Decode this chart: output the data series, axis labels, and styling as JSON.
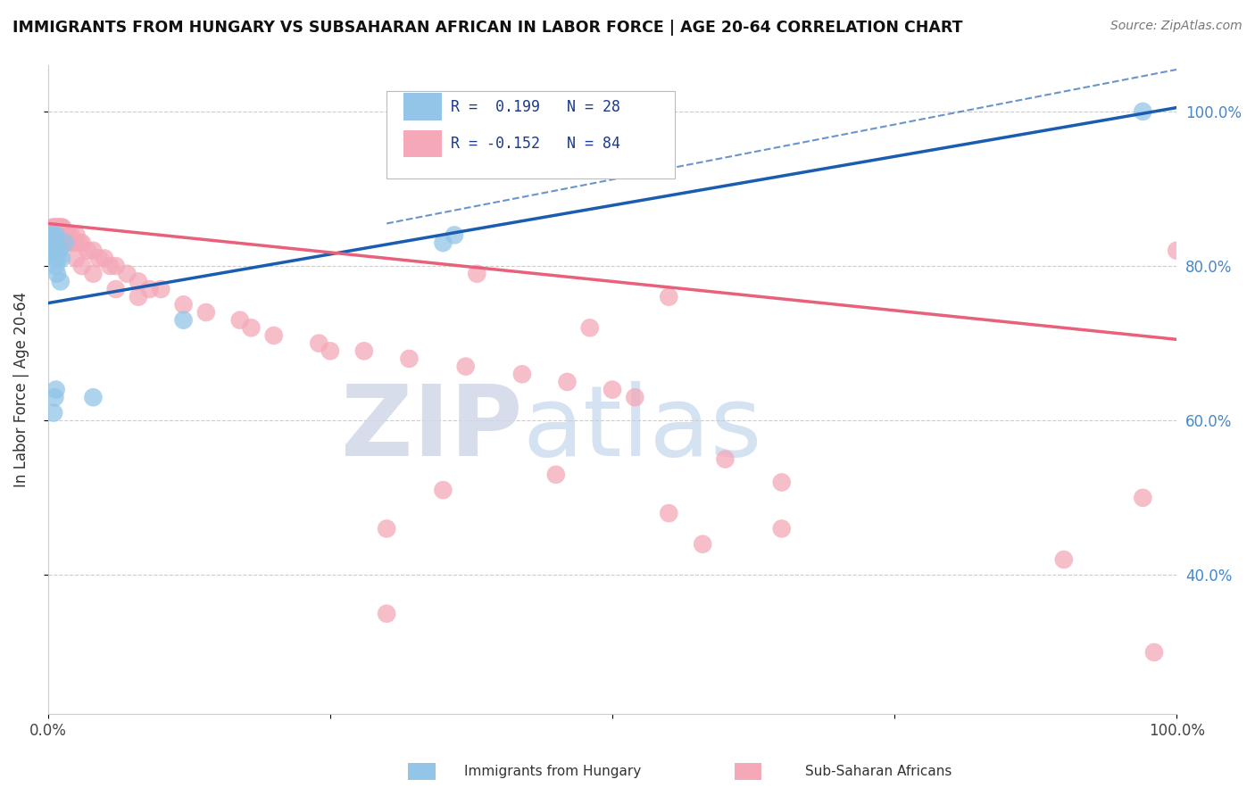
{
  "title": "IMMIGRANTS FROM HUNGARY VS SUBSAHARAN AFRICAN IN LABOR FORCE | AGE 20-64 CORRELATION CHART",
  "source_text": "Source: ZipAtlas.com",
  "ylabel": "In Labor Force | Age 20-64",
  "xlim": [
    0.0,
    1.0
  ],
  "ylim": [
    0.22,
    1.06
  ],
  "right_yticklabels": [
    "40.0%",
    "60.0%",
    "80.0%",
    "100.0%"
  ],
  "right_ytick_vals": [
    0.4,
    0.6,
    0.8,
    1.0
  ],
  "legend_r1": "R =  0.199   N = 28",
  "legend_r2": "R = -0.152   N = 84",
  "watermark_zip": "ZIP",
  "watermark_atlas": "atlas",
  "blue_color": "#92C5E8",
  "pink_color": "#F4A8B8",
  "blue_line_color": "#1A5CB0",
  "pink_line_color": "#E8607A",
  "grid_color": "#CCCCCC",
  "background_color": "#FFFFFF",
  "blue_line_x0": 0.0,
  "blue_line_y0": 0.752,
  "blue_line_x1": 1.0,
  "blue_line_y1": 1.005,
  "pink_line_x0": 0.0,
  "pink_line_y0": 0.855,
  "pink_line_x1": 1.0,
  "pink_line_y1": 0.705,
  "dash_line_x0": 0.3,
  "dash_line_y0": 0.855,
  "dash_line_x1": 1.02,
  "dash_line_y1": 1.06,
  "blue_x": [
    0.002,
    0.003,
    0.003,
    0.004,
    0.004,
    0.004,
    0.005,
    0.005,
    0.005,
    0.006,
    0.006,
    0.007,
    0.007,
    0.008,
    0.008,
    0.009,
    0.01,
    0.011,
    0.012,
    0.015,
    0.005,
    0.006,
    0.007,
    0.04,
    0.12,
    0.35,
    0.36,
    0.97
  ],
  "blue_y": [
    0.82,
    0.83,
    0.84,
    0.84,
    0.83,
    0.82,
    0.83,
    0.82,
    0.815,
    0.81,
    0.83,
    0.8,
    0.84,
    0.82,
    0.79,
    0.81,
    0.82,
    0.78,
    0.81,
    0.83,
    0.61,
    0.63,
    0.64,
    0.63,
    0.73,
    0.83,
    0.84,
    1.0
  ],
  "pink_x": [
    0.003,
    0.004,
    0.004,
    0.005,
    0.005,
    0.006,
    0.006,
    0.007,
    0.007,
    0.008,
    0.008,
    0.009,
    0.009,
    0.01,
    0.01,
    0.011,
    0.011,
    0.012,
    0.012,
    0.013,
    0.013,
    0.014,
    0.015,
    0.015,
    0.016,
    0.017,
    0.018,
    0.019,
    0.02,
    0.022,
    0.025,
    0.028,
    0.03,
    0.035,
    0.04,
    0.045,
    0.05,
    0.055,
    0.06,
    0.07,
    0.08,
    0.09,
    0.1,
    0.12,
    0.14,
    0.17,
    0.2,
    0.24,
    0.28,
    0.32,
    0.37,
    0.38,
    0.42,
    0.46,
    0.5,
    0.48,
    0.52,
    0.6,
    0.65,
    0.9,
    0.97,
    0.005,
    0.006,
    0.007,
    0.008,
    0.009,
    0.01,
    0.025,
    0.03,
    0.04,
    0.06,
    0.08,
    0.18,
    0.25,
    0.3,
    0.35,
    0.55,
    0.55,
    0.65,
    0.3,
    0.45,
    0.58,
    0.98,
    1.0
  ],
  "pink_y": [
    0.84,
    0.85,
    0.84,
    0.85,
    0.84,
    0.85,
    0.84,
    0.85,
    0.84,
    0.85,
    0.84,
    0.85,
    0.84,
    0.85,
    0.84,
    0.85,
    0.84,
    0.85,
    0.84,
    0.85,
    0.84,
    0.83,
    0.84,
    0.83,
    0.84,
    0.83,
    0.84,
    0.83,
    0.84,
    0.83,
    0.84,
    0.83,
    0.83,
    0.82,
    0.82,
    0.81,
    0.81,
    0.8,
    0.8,
    0.79,
    0.78,
    0.77,
    0.77,
    0.75,
    0.74,
    0.73,
    0.71,
    0.7,
    0.69,
    0.68,
    0.67,
    0.79,
    0.66,
    0.65,
    0.64,
    0.72,
    0.63,
    0.55,
    0.52,
    0.42,
    0.5,
    0.83,
    0.82,
    0.83,
    0.82,
    0.83,
    0.82,
    0.81,
    0.8,
    0.79,
    0.77,
    0.76,
    0.72,
    0.69,
    0.46,
    0.51,
    0.48,
    0.76,
    0.46,
    0.35,
    0.53,
    0.44,
    0.3,
    0.82
  ]
}
